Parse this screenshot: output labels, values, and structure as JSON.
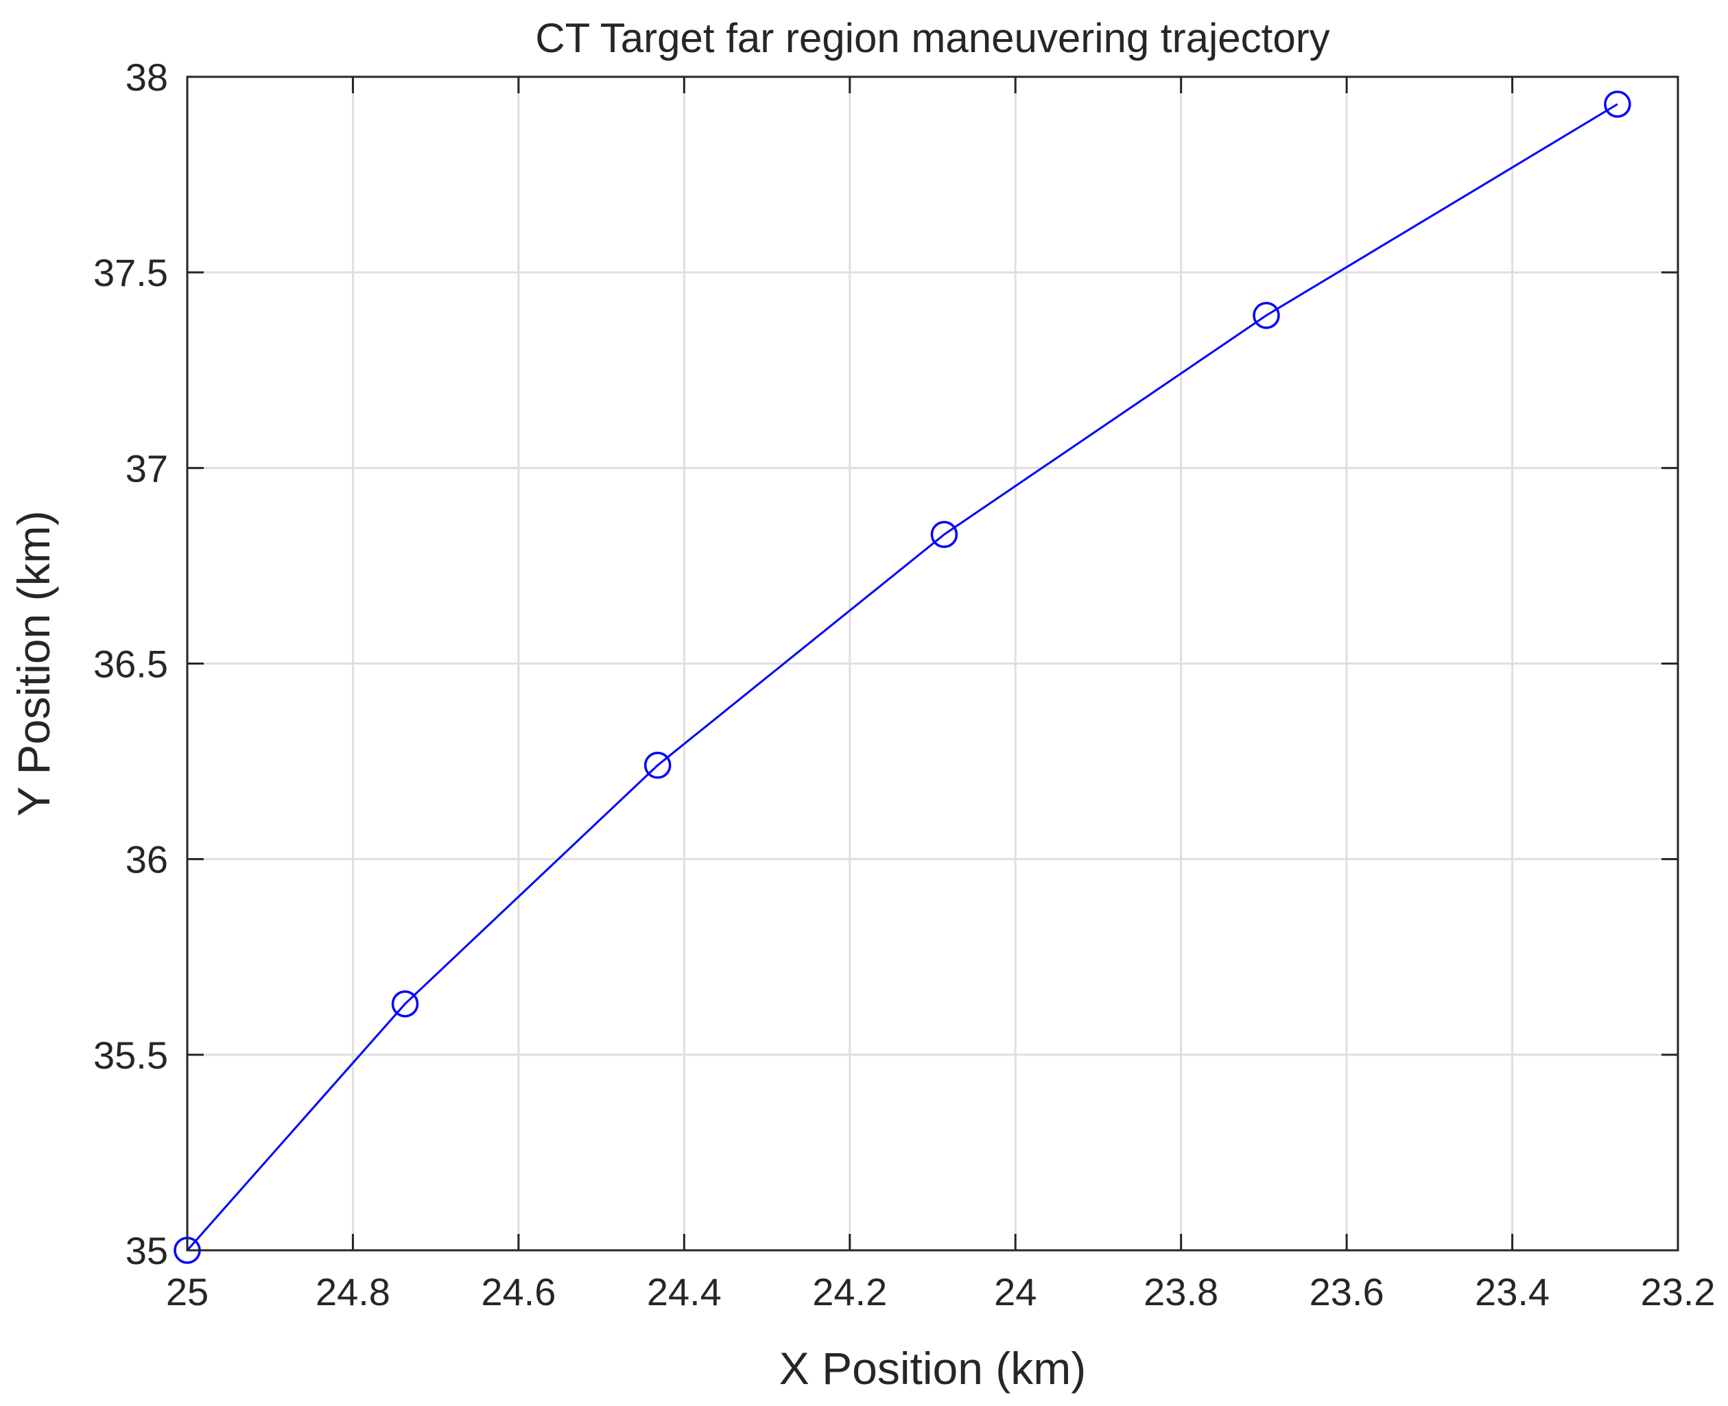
{
  "chart_data": {
    "type": "line",
    "title": "CT Target far region maneuvering trajectory",
    "xlabel": "X Position (km)",
    "ylabel": "Y Position (km)",
    "xlim": [
      25,
      23.2
    ],
    "ylim": [
      35,
      38
    ],
    "x_reversed": true,
    "grid": true,
    "legend": "none",
    "x_ticks": [
      "25",
      "24.8",
      "24.6",
      "24.4",
      "24.2",
      "24",
      "23.8",
      "23.6",
      "23.4",
      "23.2"
    ],
    "y_ticks": [
      "35",
      "35.5",
      "36",
      "36.5",
      "37",
      "37.5",
      "38"
    ],
    "series": [
      {
        "color": "#0000ff",
        "marker": "circle",
        "x": [
          25.0,
          24.737,
          24.432,
          24.086,
          23.697,
          23.273
        ],
        "y": [
          35.0,
          35.63,
          36.24,
          36.83,
          37.39,
          37.93
        ]
      }
    ]
  }
}
